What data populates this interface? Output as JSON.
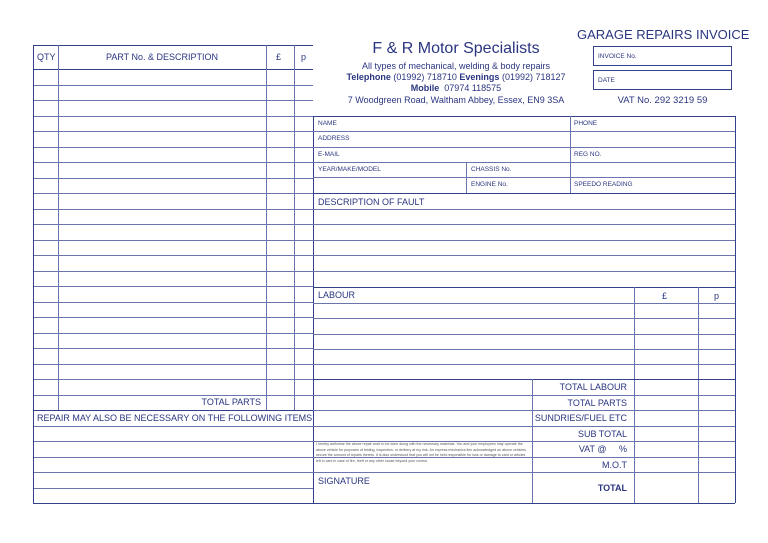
{
  "header": {
    "invoice_title": "GARAGE REPAIRS INVOICE",
    "company": "F & R Motor Specialists",
    "tagline": "All types of mechanical, welding & body repairs",
    "tel_label": "Telephone",
    "tel": "(01992) 718710",
    "eve_label": "Evenings",
    "eve": "(01992) 718127",
    "mob_label": "Mobile",
    "mob": "07974 118575",
    "address": "7 Woodgreen Road, Waltham Abbey, Essex, EN9 3SA",
    "invoice_no": "INVOICE No.",
    "date": "DATE",
    "vat_no": "VAT No. 292 3219 59"
  },
  "parts": {
    "qty": "QTY",
    "desc": "PART No. & DESCRIPTION",
    "pound": "£",
    "p": "p",
    "total": "TOTAL PARTS",
    "repair_note": "REPAIR MAY ALSO BE NECESSARY ON THE FOLLOWING ITEMS"
  },
  "customer": {
    "name": "NAME",
    "phone": "PHONE",
    "address": "ADDRESS",
    "email": "E-MAIL",
    "reg": "REG NO.",
    "ymm": "YEAR/MAKE/MODEL",
    "chassis": "CHASSIS No.",
    "engine": "ENGINE No.",
    "speedo": "SPEEDO READING"
  },
  "fault": {
    "label": "DESCRIPTION OF FAULT"
  },
  "labour": {
    "label": "LABOUR",
    "pound": "£",
    "p": "p"
  },
  "totals": {
    "labour": "TOTAL LABOUR",
    "parts": "TOTAL PARTS",
    "sundries": "SUNDRIES/FUEL ETC",
    "sub": "SUB TOTAL",
    "vat": "VAT @     %",
    "mot": "M.O.T",
    "total": "TOTAL"
  },
  "authorisation": "I hereby authorise the above repair work to be done along with the necessary materials. You and your employees may operate the above vehicle for purposes of testing, inspection, or delivery at my risk. An express mechanics lien acknowledged on above vehicles secure the amount of repairs thereto. It is also understood that you will not be held responsible for loss or damage to card or articles left in cars in case of fire, theft or any other cause beyond your control.",
  "signature": "SIGNATURE"
}
